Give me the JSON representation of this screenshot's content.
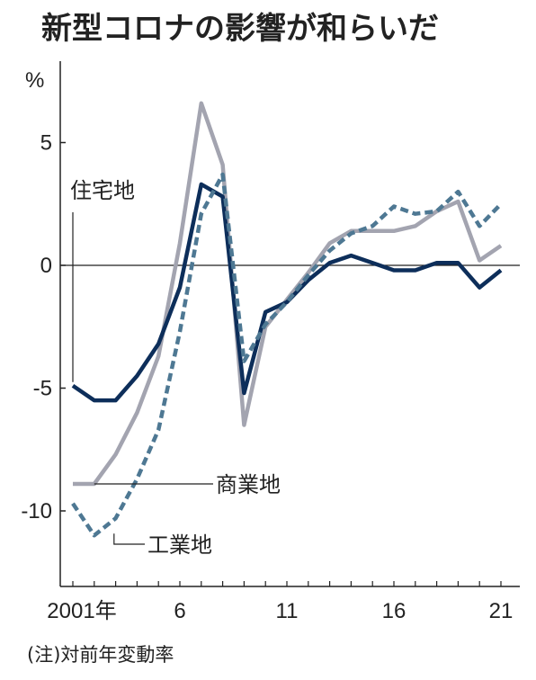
{
  "title": "新型コロナの影響が和らいだ",
  "note": "(注)対前年変動率",
  "chart_data": {
    "type": "line",
    "unit": "%",
    "x": [
      2001,
      2002,
      2003,
      2004,
      2005,
      2006,
      2007,
      2008,
      2009,
      2010,
      2011,
      2012,
      2013,
      2014,
      2015,
      2016,
      2017,
      2018,
      2019,
      2020,
      2021
    ],
    "x_tick_labels": [
      "2001年",
      "6",
      "11",
      "16",
      "21"
    ],
    "x_tick_values": [
      2001,
      2006,
      2011,
      2016,
      2021
    ],
    "ylim": [
      -12.5,
      8.3
    ],
    "y_ticks": [
      5,
      0,
      -5,
      -10
    ],
    "y_tick_labels": [
      "5",
      "0",
      "-5",
      "-10"
    ],
    "grid": false,
    "series": [
      {
        "name": "住宅地",
        "color": "#0d2e5a",
        "dash": "solid",
        "values": [
          -4.9,
          -5.5,
          -5.5,
          -4.5,
          -3.2,
          -0.9,
          3.3,
          2.8,
          -5.2,
          -1.9,
          -1.5,
          -0.6,
          0.1,
          0.4,
          0.1,
          -0.2,
          -0.2,
          0.1,
          0.1,
          -0.9,
          -0.2
        ]
      },
      {
        "name": "商業地",
        "color": "#a3a4b0",
        "dash": "solid",
        "values": [
          -8.9,
          -8.9,
          -7.7,
          -6.0,
          -3.7,
          0.9,
          6.6,
          4.1,
          -6.5,
          -2.5,
          -1.4,
          -0.3,
          0.9,
          1.4,
          1.4,
          1.4,
          1.6,
          2.2,
          2.6,
          0.2,
          0.8
        ]
      },
      {
        "name": "工業地",
        "color": "#4e7893",
        "dash": "dashed",
        "values": [
          -9.7,
          -11.0,
          -10.3,
          -8.7,
          -6.7,
          -2.7,
          2.1,
          3.7,
          -3.9,
          -2.4,
          -1.5,
          -0.4,
          0.6,
          1.3,
          1.6,
          2.4,
          2.1,
          2.2,
          3.0,
          1.6,
          2.5
        ]
      }
    ]
  }
}
